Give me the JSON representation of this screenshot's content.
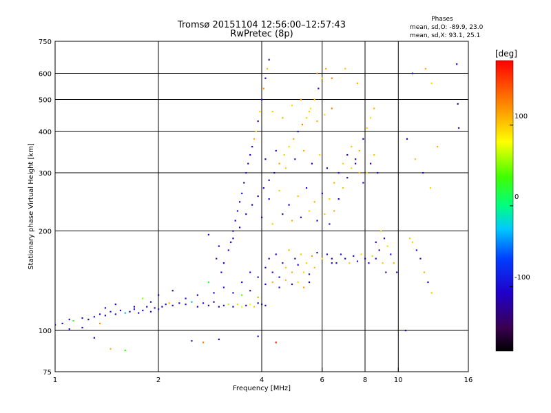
{
  "chart_data": {
    "type": "scatter",
    "title": "Tromsø 20151104 12:56:00–12:57:43",
    "subtitle": "RwPretec (8p)",
    "xlabel": "Frequency [MHz]",
    "ylabel": "Stationary phase Virtual Height [km]",
    "x_scale": "log",
    "y_scale": "log",
    "xlim": [
      1,
      16
    ],
    "ylim": [
      75,
      750
    ],
    "x_ticks": [
      1,
      2,
      4,
      6,
      8,
      10,
      16
    ],
    "y_ticks": [
      75,
      100,
      200,
      300,
      400,
      500,
      600,
      750
    ],
    "grid_x": [
      2,
      4,
      6,
      8,
      10
    ],
    "grid_y": [
      100,
      200,
      300,
      400,
      500,
      600
    ],
    "stats": {
      "heading": "Phases",
      "line_o": "mean, sd,O: -89.9, 23.0",
      "line_x": "mean, sd,X:  93.1, 25.1"
    },
    "colorbar": {
      "label": "[deg]",
      "range": [
        -180,
        180
      ],
      "ticks": [
        -100,
        0,
        100
      ]
    },
    "points": [
      [
        1.0,
        104,
        -110
      ],
      [
        1.05,
        105,
        -105
      ],
      [
        1.1,
        108,
        -100
      ],
      [
        1.13,
        107,
        30
      ],
      [
        1.2,
        109,
        -115
      ],
      [
        1.25,
        108,
        -120
      ],
      [
        1.3,
        110,
        -95
      ],
      [
        1.35,
        112,
        -110
      ],
      [
        1.4,
        111,
        -100
      ],
      [
        1.45,
        114,
        -90
      ],
      [
        1.5,
        112,
        -125
      ],
      [
        1.55,
        115,
        -105
      ],
      [
        1.6,
        113,
        -30
      ],
      [
        1.65,
        114,
        -115
      ],
      [
        1.7,
        116,
        -100
      ],
      [
        1.75,
        113,
        -95
      ],
      [
        1.8,
        115,
        -110
      ],
      [
        1.85,
        118,
        -120
      ],
      [
        1.9,
        114,
        -100
      ],
      [
        1.95,
        117,
        -105
      ],
      [
        2.0,
        116,
        -95
      ],
      [
        2.05,
        118,
        -110
      ],
      [
        2.1,
        120,
        -100
      ],
      [
        2.15,
        121,
        110
      ],
      [
        2.2,
        119,
        -115
      ],
      [
        2.3,
        121,
        -105
      ],
      [
        2.4,
        120,
        -95
      ],
      [
        2.5,
        122,
        -30
      ],
      [
        2.6,
        118,
        -110
      ],
      [
        2.7,
        121,
        -100
      ],
      [
        2.8,
        119,
        -120
      ],
      [
        2.9,
        122,
        -105
      ],
      [
        3.0,
        118,
        -115
      ],
      [
        3.1,
        119,
        -100
      ],
      [
        3.2,
        120,
        60
      ],
      [
        3.3,
        118,
        -110
      ],
      [
        3.4,
        120,
        95
      ],
      [
        3.5,
        118,
        70
      ],
      [
        3.6,
        119,
        -105
      ],
      [
        3.7,
        120,
        80
      ],
      [
        3.8,
        118,
        100
      ],
      [
        3.9,
        121,
        -110
      ],
      [
        4.0,
        120,
        -95
      ],
      [
        4.1,
        119,
        -120
      ],
      [
        1.3,
        95,
        -110
      ],
      [
        1.45,
        88,
        110
      ],
      [
        1.6,
        87,
        30
      ],
      [
        2.5,
        93,
        -100
      ],
      [
        2.7,
        92,
        130
      ],
      [
        3.0,
        94,
        -110
      ],
      [
        3.9,
        96,
        -105
      ],
      [
        4.4,
        92,
        170
      ],
      [
        3.1,
        160,
        -110
      ],
      [
        3.2,
        175,
        -100
      ],
      [
        3.25,
        185,
        -120
      ],
      [
        3.3,
        200,
        -105
      ],
      [
        3.35,
        215,
        -115
      ],
      [
        3.4,
        230,
        -100
      ],
      [
        3.45,
        245,
        -110
      ],
      [
        3.5,
        260,
        -95
      ],
      [
        3.55,
        280,
        -120
      ],
      [
        3.6,
        300,
        -100
      ],
      [
        3.65,
        320,
        -105
      ],
      [
        3.7,
        340,
        -110
      ],
      [
        3.75,
        360,
        -100
      ],
      [
        3.8,
        380,
        110
      ],
      [
        3.85,
        400,
        90
      ],
      [
        3.9,
        430,
        -115
      ],
      [
        3.95,
        460,
        100
      ],
      [
        4.0,
        500,
        -100
      ],
      [
        4.05,
        540,
        120
      ],
      [
        4.1,
        580,
        -110
      ],
      [
        4.15,
        620,
        105
      ],
      [
        4.2,
        660,
        -95
      ],
      [
        3.3,
        190,
        -105
      ],
      [
        3.45,
        205,
        -110
      ],
      [
        3.6,
        225,
        -100
      ],
      [
        3.75,
        240,
        -115
      ],
      [
        3.9,
        255,
        -105
      ],
      [
        4.05,
        270,
        -110
      ],
      [
        4.2,
        285,
        -100
      ],
      [
        4.35,
        300,
        -120
      ],
      [
        4.5,
        320,
        115
      ],
      [
        4.65,
        340,
        100
      ],
      [
        4.8,
        360,
        95
      ],
      [
        4.95,
        380,
        110
      ],
      [
        5.1,
        400,
        -105
      ],
      [
        5.25,
        420,
        130
      ],
      [
        5.4,
        440,
        100
      ],
      [
        5.55,
        470,
        90
      ],
      [
        5.7,
        500,
        110
      ],
      [
        5.85,
        540,
        -100
      ],
      [
        6.0,
        580,
        95
      ],
      [
        6.15,
        620,
        110
      ],
      [
        4.2,
        165,
        -105
      ],
      [
        4.4,
        170,
        -110
      ],
      [
        4.6,
        160,
        -100
      ],
      [
        4.8,
        175,
        110
      ],
      [
        5.0,
        165,
        -115
      ],
      [
        5.2,
        170,
        100
      ],
      [
        5.4,
        160,
        95
      ],
      [
        5.6,
        168,
        115
      ],
      [
        5.8,
        172,
        -105
      ],
      [
        6.0,
        165,
        90
      ],
      [
        6.2,
        170,
        -110
      ],
      [
        6.4,
        160,
        -100
      ],
      [
        4.3,
        150,
        -110
      ],
      [
        4.5,
        145,
        -105
      ],
      [
        4.7,
        155,
        100
      ],
      [
        4.9,
        150,
        110
      ],
      [
        5.1,
        158,
        -100
      ],
      [
        5.3,
        150,
        95
      ],
      [
        5.5,
        148,
        -115
      ],
      [
        5.7,
        155,
        105
      ],
      [
        4.1,
        138,
        -110
      ],
      [
        4.3,
        140,
        110
      ],
      [
        4.5,
        135,
        -100
      ],
      [
        4.7,
        142,
        100
      ],
      [
        4.9,
        138,
        -105
      ],
      [
        5.1,
        140,
        95
      ],
      [
        5.3,
        135,
        115
      ],
      [
        5.5,
        140,
        -110
      ],
      [
        6.3,
        210,
        -100
      ],
      [
        6.5,
        230,
        110
      ],
      [
        6.7,
        250,
        -105
      ],
      [
        6.9,
        270,
        100
      ],
      [
        7.1,
        290,
        -110
      ],
      [
        7.3,
        310,
        95
      ],
      [
        7.5,
        330,
        -100
      ],
      [
        7.7,
        350,
        110
      ],
      [
        7.9,
        380,
        -105
      ],
      [
        8.1,
        410,
        100
      ],
      [
        8.3,
        440,
        90
      ],
      [
        8.5,
        470,
        110
      ],
      [
        6.4,
        165,
        -110
      ],
      [
        6.6,
        160,
        -105
      ],
      [
        6.8,
        170,
        -100
      ],
      [
        7.0,
        165,
        -115
      ],
      [
        7.2,
        160,
        100
      ],
      [
        7.4,
        168,
        -110
      ],
      [
        7.6,
        162,
        -100
      ],
      [
        7.8,
        170,
        95
      ],
      [
        8.0,
        165,
        -105
      ],
      [
        8.2,
        160,
        -110
      ],
      [
        8.4,
        168,
        100
      ],
      [
        8.6,
        165,
        -100
      ],
      [
        6.5,
        280,
        110
      ],
      [
        6.7,
        300,
        -100
      ],
      [
        6.9,
        320,
        95
      ],
      [
        7.1,
        340,
        -110
      ],
      [
        7.3,
        360,
        100
      ],
      [
        7.5,
        320,
        -105
      ],
      [
        7.7,
        300,
        110
      ],
      [
        7.9,
        280,
        -100
      ],
      [
        8.1,
        300,
        95
      ],
      [
        8.3,
        320,
        -110
      ],
      [
        8.5,
        340,
        100
      ],
      [
        8.7,
        300,
        -105
      ],
      [
        8.9,
        200,
        100
      ],
      [
        9.1,
        190,
        -110
      ],
      [
        9.3,
        180,
        95
      ],
      [
        9.5,
        170,
        -100
      ],
      [
        9.7,
        160,
        110
      ],
      [
        9.9,
        150,
        -105
      ],
      [
        8.6,
        185,
        -100
      ],
      [
        8.8,
        175,
        -110
      ],
      [
        9.0,
        160,
        100
      ],
      [
        9.2,
        150,
        -105
      ],
      [
        10.5,
        100,
        -110
      ],
      [
        10.8,
        190,
        100
      ],
      [
        11.0,
        185,
        95
      ],
      [
        11.3,
        175,
        -100
      ],
      [
        11.6,
        165,
        -105
      ],
      [
        11.9,
        150,
        110
      ],
      [
        12.2,
        140,
        -110
      ],
      [
        12.5,
        130,
        100
      ],
      [
        10.6,
        380,
        -105
      ],
      [
        11.2,
        330,
        100
      ],
      [
        11.8,
        300,
        -110
      ],
      [
        12.4,
        270,
        95
      ],
      [
        11.0,
        600,
        -100
      ],
      [
        12.0,
        620,
        110
      ],
      [
        12.5,
        560,
        95
      ],
      [
        13.0,
        360,
        110
      ],
      [
        14.8,
        640,
        -110
      ],
      [
        14.9,
        485,
        -105
      ],
      [
        15.0,
        410,
        -100
      ],
      [
        5.8,
        600,
        120
      ],
      [
        6.4,
        580,
        130
      ],
      [
        7.0,
        620,
        100
      ],
      [
        7.6,
        560,
        110
      ],
      [
        4.3,
        460,
        100
      ],
      [
        4.6,
        440,
        110
      ],
      [
        4.9,
        480,
        95
      ],
      [
        5.2,
        500,
        120
      ],
      [
        5.5,
        460,
        100
      ],
      [
        5.8,
        430,
        110
      ],
      [
        6.1,
        450,
        95
      ],
      [
        6.4,
        470,
        130
      ],
      [
        4.1,
        330,
        -110
      ],
      [
        4.4,
        350,
        -105
      ],
      [
        4.7,
        310,
        100
      ],
      [
        5.0,
        330,
        -100
      ],
      [
        5.3,
        350,
        110
      ],
      [
        5.6,
        320,
        -105
      ],
      [
        5.9,
        340,
        95
      ],
      [
        6.2,
        310,
        -110
      ],
      [
        4.2,
        250,
        -100
      ],
      [
        4.5,
        265,
        100
      ],
      [
        4.8,
        240,
        -110
      ],
      [
        5.1,
        255,
        105
      ],
      [
        5.4,
        270,
        -105
      ],
      [
        5.7,
        245,
        110
      ],
      [
        6.0,
        260,
        -100
      ],
      [
        6.3,
        250,
        95
      ],
      [
        4.0,
        220,
        -110
      ],
      [
        4.3,
        210,
        100
      ],
      [
        4.6,
        225,
        -105
      ],
      [
        4.9,
        215,
        110
      ],
      [
        5.2,
        220,
        -100
      ],
      [
        5.5,
        230,
        95
      ],
      [
        5.8,
        215,
        -110
      ],
      [
        6.1,
        225,
        100
      ],
      [
        3.5,
        140,
        -105
      ],
      [
        3.7,
        150,
        -110
      ],
      [
        3.9,
        145,
        -100
      ],
      [
        4.1,
        155,
        -115
      ],
      [
        3.3,
        130,
        -100
      ],
      [
        3.5,
        128,
        40
      ],
      [
        3.7,
        132,
        -110
      ],
      [
        3.9,
        126,
        110
      ],
      [
        2.9,
        130,
        -105
      ],
      [
        3.1,
        135,
        -100
      ],
      [
        2.6,
        128,
        -110
      ],
      [
        2.8,
        140,
        20
      ],
      [
        2.4,
        125,
        -100
      ],
      [
        2.2,
        132,
        -115
      ],
      [
        2.0,
        128,
        -105
      ],
      [
        1.8,
        125,
        50
      ],
      [
        1.5,
        120,
        -100
      ],
      [
        1.7,
        118,
        -110
      ],
      [
        1.9,
        122,
        -100
      ],
      [
        1.4,
        117,
        -105
      ],
      [
        1.35,
        105,
        120
      ],
      [
        1.2,
        102,
        -110
      ],
      [
        1.1,
        101,
        -100
      ],
      [
        2.8,
        195,
        -110
      ],
      [
        3.0,
        180,
        -105
      ],
      [
        2.95,
        165,
        -100
      ],
      [
        3.05,
        150,
        -110
      ]
    ]
  }
}
